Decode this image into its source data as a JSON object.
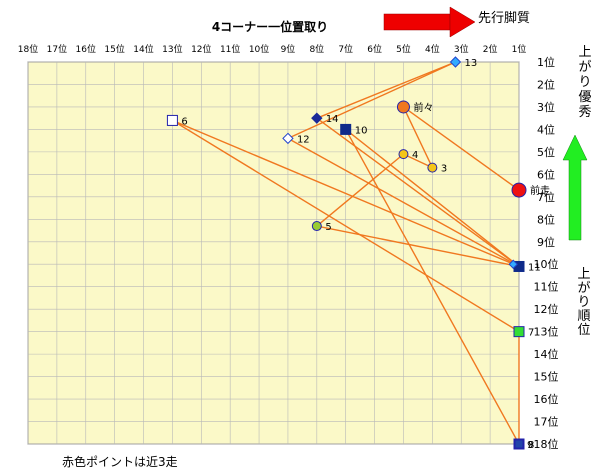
{
  "chart_data": {
    "type": "scatter",
    "title": "4コーナー一位置取り",
    "arrow_label_top": "先行脚質",
    "arrow_label_right_top": "上がり優秀",
    "right_label_mid": "上がり順位",
    "note": "赤色ポイントは近3走",
    "x_categories": [
      "18位",
      "17位",
      "16位",
      "15位",
      "14位",
      "13位",
      "12位",
      "11位",
      "10位",
      "9位",
      "8位",
      "7位",
      "6位",
      "5位",
      "4位",
      "3位",
      "2位",
      "1位"
    ],
    "y_categories": [
      "1位",
      "2位",
      "3位",
      "4位",
      "5位",
      "6位",
      "7位",
      "8位",
      "9位",
      "10位",
      "11位",
      "12位",
      "13位",
      "14位",
      "15位",
      "16位",
      "17位",
      "18位"
    ],
    "xlim": [
      18,
      1
    ],
    "ylim": [
      1,
      18
    ],
    "grid": true,
    "colors": {
      "plot_bg": "#fbf9c8",
      "grid": "#b8b8b8",
      "line": "#f07820",
      "arrow_red": "#ee0000",
      "arrow_green": "#22ee22"
    },
    "points": [
      {
        "label": "前走",
        "x": 1,
        "y": 6.7,
        "shape": "circle",
        "fill": "#ee1111",
        "stroke": "#2222aa",
        "size": 7
      },
      {
        "label": "前々",
        "x": 5,
        "y": 3,
        "shape": "circle",
        "fill": "#f07820",
        "stroke": "#2222aa",
        "size": 6
      },
      {
        "label": "3",
        "x": 4,
        "y": 5.7,
        "shape": "circle",
        "fill": "#f5c518",
        "stroke": "#2222aa",
        "size": 4.5
      },
      {
        "label": "4",
        "x": 5,
        "y": 5.1,
        "shape": "circle",
        "fill": "#f5c518",
        "stroke": "#2222aa",
        "size": 4.5
      },
      {
        "label": "5",
        "x": 8,
        "y": 8.3,
        "shape": "circle",
        "fill": "#99cc33",
        "stroke": "#2222aa",
        "size": 4.5
      },
      {
        "label": "6",
        "x": 13,
        "y": 3.6,
        "shape": "square",
        "fill": "#ffffff",
        "stroke": "#2222aa",
        "size": 5
      },
      {
        "label": "7",
        "x": 1,
        "y": 13,
        "shape": "square",
        "fill": "#33dd33",
        "stroke": "#2222aa",
        "size": 5
      },
      {
        "label": "8",
        "x": 1,
        "y": 18,
        "shape": "square",
        "fill": "#117711",
        "stroke": "#2222aa",
        "size": 5
      },
      {
        "label": "9",
        "x": 1,
        "y": 18,
        "shape": "square",
        "fill": "#2244aa",
        "stroke": "#2222aa",
        "size": 4
      },
      {
        "label": "10",
        "x": 7,
        "y": 4,
        "shape": "square",
        "fill": "#0f2a8a",
        "stroke": "#0f2a8a",
        "size": 5
      },
      {
        "label": "11",
        "x": 1,
        "y": 10.1,
        "shape": "square",
        "fill": "#0f2a8a",
        "stroke": "#0f2a8a",
        "size": 5
      },
      {
        "label": "12",
        "x": 9,
        "y": 4.4,
        "shape": "diamond",
        "fill": "#ffffff",
        "stroke": "#2244cc",
        "size": 5
      },
      {
        "label": "13",
        "x": 3.2,
        "y": 1,
        "shape": "diamond",
        "fill": "#33aaff",
        "stroke": "#2244cc",
        "size": 5
      },
      {
        "label": "14",
        "x": 8,
        "y": 3.5,
        "shape": "diamond",
        "fill": "#1a2a99",
        "stroke": "#1a2a99",
        "size": 5
      },
      {
        "label": "",
        "x": 1.2,
        "y": 10,
        "shape": "diamond",
        "fill": "#33aaff",
        "stroke": "#2244cc",
        "size": 4
      }
    ],
    "path_order": [
      "前走",
      "前々",
      "3",
      "4",
      "5",
      "11",
      "6",
      "7",
      "8",
      "9",
      "10",
      "11",
      "12",
      "13",
      "14",
      "11"
    ]
  }
}
